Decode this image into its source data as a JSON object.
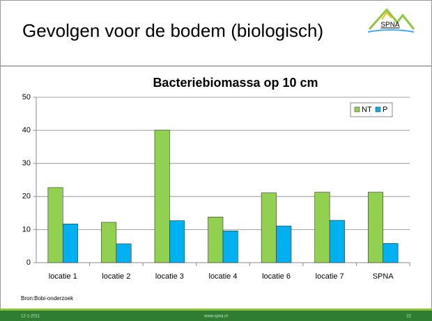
{
  "slide": {
    "title": "Gevolgen voor de bodem (biologisch)",
    "logo": "SPNA",
    "source": "Bron:Bobi-onderzoek",
    "footer": {
      "date": "12-1-2011",
      "url": "www.spna.nl",
      "page": "22"
    }
  },
  "chart_data": {
    "type": "bar",
    "title": "Bacteriebiomassa op 10 cm",
    "categories": [
      "locatie 1",
      "locatie 2",
      "locatie 3",
      "locatie 4",
      "locatie 6",
      "locatie 7",
      "SPNA"
    ],
    "series": [
      {
        "name": "NT",
        "color": "#92d050",
        "values": [
          22.7,
          12.2,
          40.1,
          13.8,
          21.1,
          21.3,
          21.3
        ]
      },
      {
        "name": "P",
        "color": "#00b0f0",
        "values": [
          11.7,
          5.7,
          12.7,
          9.6,
          11.1,
          12.8,
          5.8
        ]
      }
    ],
    "ylim": [
      0,
      50
    ],
    "yticks": [
      0,
      10,
      20,
      30,
      40,
      50
    ],
    "grid": true,
    "legend": "upper right"
  }
}
